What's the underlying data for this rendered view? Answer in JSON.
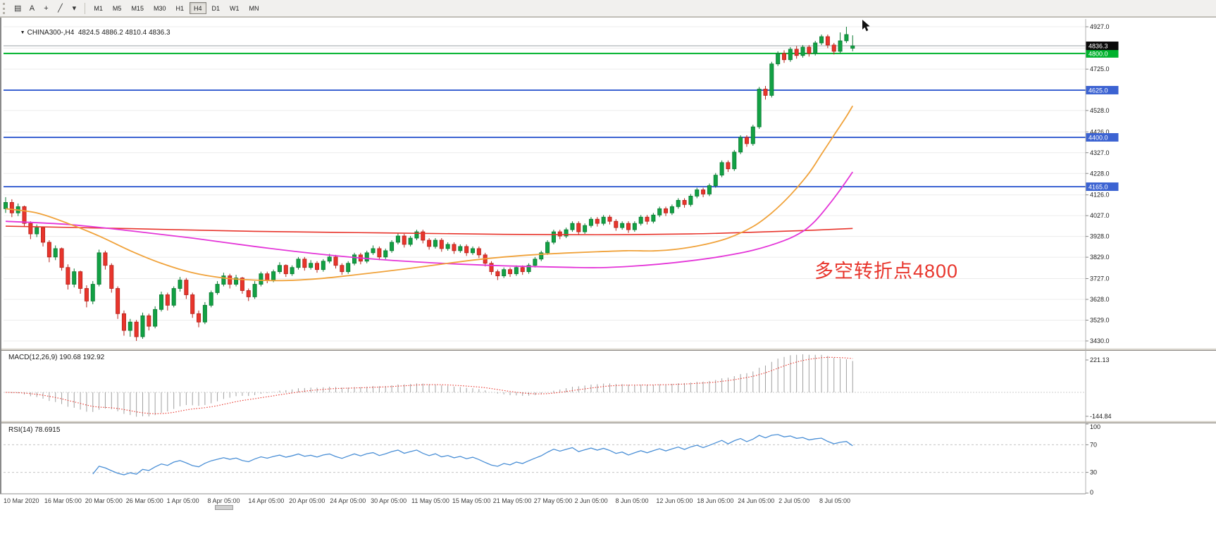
{
  "toolbar": {
    "tools": [
      {
        "name": "charts-bar-icon",
        "glyph": "▤"
      },
      {
        "name": "text-tool-button",
        "glyph": "A"
      },
      {
        "name": "crosshair-icon",
        "glyph": "+"
      },
      {
        "name": "trendline-tool-icon",
        "glyph": "╱"
      },
      {
        "name": "chevron-down-icon",
        "glyph": "▾"
      }
    ],
    "timeframes": [
      "M1",
      "M5",
      "M15",
      "M30",
      "H1",
      "H4",
      "D1",
      "W1",
      "MN"
    ],
    "active_timeframe": "H4"
  },
  "chart": {
    "title_symbol": "CHINA300-,H4",
    "title_ohlc": "4824.5 4886.2 4810.4 4836.3",
    "annotation": "多空转折点4800",
    "current_price_label": "4836.3",
    "price_ticks": [
      "4927.0",
      "4825.0",
      "4725.0",
      "4625.0",
      "4528.0",
      "4426.0",
      "4327.0",
      "4228.0",
      "4126.0",
      "4027.0",
      "3928.0",
      "3829.0",
      "3727.0",
      "3628.0",
      "3529.0",
      "3430.0"
    ],
    "hlines": [
      {
        "price": 4800.0,
        "label": "4800.0",
        "color": "#00b22d"
      },
      {
        "price": 4625.0,
        "label": "4625.0",
        "color": "#3c63d2"
      },
      {
        "price": 4400.0,
        "label": "4400.0",
        "color": "#3c63d2"
      },
      {
        "price": 4165.0,
        "label": "4165.0",
        "color": "#3c63d2"
      }
    ],
    "colors": {
      "bull": "#12a144",
      "bull_stroke": "#0a7a31",
      "bear": "#e8352c",
      "bear_stroke": "#b4211a",
      "ma_red": "#e8352c",
      "ma_magenta": "#e435d8",
      "ma_orange": "#f0a23a",
      "grid": "#ececec",
      "bid_line": "#9aa0a6",
      "axis": "#b0b0b0"
    }
  },
  "macd": {
    "header": "MACD(12,26,9) 190.68 192.92",
    "scale_top": "221.13",
    "scale_bottom": "-144.84",
    "range": [
      -144.84,
      221.13
    ],
    "histogram_color": "#a0a0a0",
    "signal_color": "#e8352c"
  },
  "rsi": {
    "header": "RSI(14) 78.6915",
    "scale": [
      {
        "label": "100",
        "value": 100
      },
      {
        "label": "70",
        "value": 70
      },
      {
        "label": "30",
        "value": 30
      },
      {
        "label": "0",
        "value": 0
      }
    ],
    "dashed_levels": [
      70,
      30
    ],
    "line_color": "#4a8fd6"
  },
  "time_axis": [
    "10 Mar 2020",
    "16 Mar 05:00",
    "20 Mar 05:00",
    "26 Mar 05:00",
    "1 Apr 05:00",
    "8 Apr 05:00",
    "14 Apr 05:00",
    "20 Apr 05:00",
    "24 Apr 05:00",
    "30 Apr 05:00",
    "11 May 05:00",
    "15 May 05:00",
    "21 May 05:00",
    "27 May 05:00",
    "2 Jun 05:00",
    "8 Jun 05:00",
    "12 Jun 05:00",
    "18 Jun 05:00",
    "24 Jun 05:00",
    "2 Jul 05:00",
    "8 Jul 05:00"
  ],
  "chart_data": {
    "type": "candlestick",
    "symbol": "CHINA300-",
    "timeframe": "H4",
    "title": "CHINA300- H4 with MACD(12,26,9) and RSI(14)",
    "price_range": [
      3430,
      4927
    ],
    "current_ohlc": {
      "open": 4824.5,
      "high": 4886.2,
      "low": 4810.4,
      "close": 4836.3
    },
    "horizontal_levels": [
      4800.0,
      4625.0,
      4400.0,
      4165.0
    ],
    "indicators": {
      "macd_current": [
        190.68,
        192.92
      ],
      "macd_minmax": [
        -144.84,
        221.13
      ],
      "rsi_current": 78.6915
    },
    "ohlc": [
      [
        4060,
        4115,
        4040,
        4090
      ],
      [
        4090,
        4105,
        4020,
        4040
      ],
      [
        4040,
        4085,
        4025,
        4070
      ],
      [
        4070,
        4075,
        3975,
        3990
      ],
      [
        3990,
        4000,
        3915,
        3940
      ],
      [
        3940,
        3985,
        3925,
        3970
      ],
      [
        3970,
        3975,
        3880,
        3900
      ],
      [
        3900,
        3910,
        3805,
        3830
      ],
      [
        3830,
        3885,
        3815,
        3870
      ],
      [
        3870,
        3875,
        3765,
        3780
      ],
      [
        3780,
        3795,
        3675,
        3700
      ],
      [
        3700,
        3775,
        3685,
        3760
      ],
      [
        3760,
        3765,
        3655,
        3680
      ],
      [
        3680,
        3695,
        3590,
        3620
      ],
      [
        3620,
        3715,
        3605,
        3700
      ],
      [
        3700,
        3865,
        3690,
        3850
      ],
      [
        3850,
        3860,
        3770,
        3790
      ],
      [
        3790,
        3800,
        3660,
        3680
      ],
      [
        3680,
        3690,
        3535,
        3560
      ],
      [
        3560,
        3575,
        3455,
        3480
      ],
      [
        3480,
        3535,
        3450,
        3520
      ],
      [
        3520,
        3530,
        3430,
        3450
      ],
      [
        3450,
        3565,
        3440,
        3550
      ],
      [
        3550,
        3560,
        3480,
        3500
      ],
      [
        3500,
        3595,
        3490,
        3580
      ],
      [
        3580,
        3665,
        3570,
        3650
      ],
      [
        3650,
        3660,
        3575,
        3600
      ],
      [
        3600,
        3690,
        3590,
        3680
      ],
      [
        3680,
        3735,
        3665,
        3720
      ],
      [
        3720,
        3730,
        3630,
        3650
      ],
      [
        3650,
        3660,
        3540,
        3560
      ],
      [
        3560,
        3575,
        3495,
        3520
      ],
      [
        3520,
        3615,
        3510,
        3600
      ],
      [
        3600,
        3670,
        3590,
        3660
      ],
      [
        3660,
        3715,
        3650,
        3700
      ],
      [
        3700,
        3755,
        3690,
        3740
      ],
      [
        3740,
        3750,
        3680,
        3700
      ],
      [
        3700,
        3745,
        3690,
        3730
      ],
      [
        3730,
        3735,
        3655,
        3670
      ],
      [
        3670,
        3680,
        3620,
        3640
      ],
      [
        3640,
        3715,
        3630,
        3700
      ],
      [
        3700,
        3760,
        3690,
        3750
      ],
      [
        3750,
        3760,
        3705,
        3720
      ],
      [
        3720,
        3770,
        3710,
        3760
      ],
      [
        3760,
        3805,
        3750,
        3790
      ],
      [
        3790,
        3795,
        3735,
        3750
      ],
      [
        3750,
        3790,
        3740,
        3780
      ],
      [
        3780,
        3830,
        3770,
        3820
      ],
      [
        3820,
        3830,
        3765,
        3780
      ],
      [
        3780,
        3815,
        3770,
        3800
      ],
      [
        3800,
        3810,
        3755,
        3770
      ],
      [
        3770,
        3820,
        3760,
        3810
      ],
      [
        3810,
        3845,
        3800,
        3830
      ],
      [
        3830,
        3840,
        3775,
        3790
      ],
      [
        3790,
        3800,
        3745,
        3760
      ],
      [
        3760,
        3810,
        3750,
        3800
      ],
      [
        3800,
        3850,
        3790,
        3840
      ],
      [
        3840,
        3850,
        3795,
        3810
      ],
      [
        3810,
        3860,
        3800,
        3850
      ],
      [
        3850,
        3885,
        3840,
        3870
      ],
      [
        3870,
        3880,
        3815,
        3830
      ],
      [
        3830,
        3870,
        3820,
        3860
      ],
      [
        3860,
        3910,
        3850,
        3900
      ],
      [
        3900,
        3945,
        3890,
        3930
      ],
      [
        3930,
        3940,
        3875,
        3890
      ],
      [
        3890,
        3930,
        3880,
        3920
      ],
      [
        3920,
        3960,
        3910,
        3950
      ],
      [
        3950,
        3960,
        3895,
        3910
      ],
      [
        3910,
        3920,
        3865,
        3880
      ],
      [
        3880,
        3920,
        3870,
        3910
      ],
      [
        3910,
        3920,
        3855,
        3870
      ],
      [
        3870,
        3900,
        3860,
        3890
      ],
      [
        3890,
        3900,
        3845,
        3860
      ],
      [
        3860,
        3890,
        3850,
        3880
      ],
      [
        3880,
        3890,
        3835,
        3850
      ],
      [
        3850,
        3880,
        3840,
        3870
      ],
      [
        3870,
        3880,
        3825,
        3840
      ],
      [
        3840,
        3850,
        3785,
        3800
      ],
      [
        3800,
        3810,
        3745,
        3760
      ],
      [
        3760,
        3770,
        3720,
        3740
      ],
      [
        3740,
        3780,
        3730,
        3770
      ],
      [
        3770,
        3780,
        3735,
        3750
      ],
      [
        3750,
        3790,
        3740,
        3780
      ],
      [
        3780,
        3790,
        3745,
        3760
      ],
      [
        3760,
        3800,
        3750,
        3790
      ],
      [
        3790,
        3830,
        3780,
        3820
      ],
      [
        3820,
        3860,
        3810,
        3850
      ],
      [
        3850,
        3910,
        3840,
        3900
      ],
      [
        3900,
        3960,
        3890,
        3950
      ],
      [
        3950,
        3960,
        3915,
        3930
      ],
      [
        3930,
        3970,
        3920,
        3960
      ],
      [
        3960,
        4000,
        3950,
        3990
      ],
      [
        3990,
        4000,
        3935,
        3950
      ],
      [
        3950,
        3990,
        3940,
        3980
      ],
      [
        3980,
        4020,
        3970,
        4010
      ],
      [
        4010,
        4020,
        3975,
        3990
      ],
      [
        3990,
        4030,
        3980,
        4020
      ],
      [
        4020,
        4030,
        3985,
        4000
      ],
      [
        4000,
        4010,
        3955,
        3970
      ],
      [
        3970,
        4000,
        3960,
        3990
      ],
      [
        3990,
        4000,
        3945,
        3960
      ],
      [
        3960,
        4000,
        3950,
        3990
      ],
      [
        3990,
        4030,
        3980,
        4020
      ],
      [
        4020,
        4030,
        3985,
        4000
      ],
      [
        4000,
        4040,
        3990,
        4030
      ],
      [
        4030,
        4070,
        4020,
        4060
      ],
      [
        4060,
        4070,
        4025,
        4040
      ],
      [
        4040,
        4080,
        4030,
        4070
      ],
      [
        4070,
        4110,
        4060,
        4100
      ],
      [
        4100,
        4110,
        4065,
        4080
      ],
      [
        4080,
        4130,
        4070,
        4120
      ],
      [
        4120,
        4160,
        4110,
        4150
      ],
      [
        4150,
        4160,
        4115,
        4130
      ],
      [
        4130,
        4180,
        4120,
        4170
      ],
      [
        4170,
        4230,
        4160,
        4220
      ],
      [
        4220,
        4290,
        4210,
        4280
      ],
      [
        4280,
        4290,
        4235,
        4250
      ],
      [
        4250,
        4340,
        4240,
        4330
      ],
      [
        4330,
        4410,
        4320,
        4400
      ],
      [
        4400,
        4410,
        4355,
        4370
      ],
      [
        4370,
        4460,
        4360,
        4450
      ],
      [
        4450,
        4640,
        4440,
        4630
      ],
      [
        4630,
        4645,
        4580,
        4600
      ],
      [
        4600,
        4760,
        4590,
        4750
      ],
      [
        4750,
        4810,
        4740,
        4800
      ],
      [
        4800,
        4815,
        4755,
        4770
      ],
      [
        4770,
        4830,
        4760,
        4820
      ],
      [
        4820,
        4835,
        4775,
        4790
      ],
      [
        4790,
        4840,
        4780,
        4830
      ],
      [
        4830,
        4840,
        4785,
        4800
      ],
      [
        4800,
        4860,
        4790,
        4850
      ],
      [
        4850,
        4890,
        4840,
        4880
      ],
      [
        4880,
        4890,
        4825,
        4840
      ],
      [
        4840,
        4850,
        4795,
        4810
      ],
      [
        4810,
        4900,
        4800,
        4860
      ],
      [
        4860,
        4927,
        4850,
        4890
      ],
      [
        4824.5,
        4886.2,
        4810.4,
        4836.3
      ]
    ],
    "ma": {
      "red": [
        [
          0,
          3977
        ],
        [
          20,
          3965
        ],
        [
          40,
          3952
        ],
        [
          60,
          3945
        ],
        [
          80,
          3938
        ],
        [
          95,
          3936
        ],
        [
          110,
          3940
        ],
        [
          120,
          3948
        ],
        [
          130,
          3958
        ],
        [
          136,
          3966
        ]
      ],
      "magenta": [
        [
          0,
          4000
        ],
        [
          10,
          3985
        ],
        [
          20,
          3955
        ],
        [
          30,
          3920
        ],
        [
          40,
          3880
        ],
        [
          50,
          3845
        ],
        [
          60,
          3818
        ],
        [
          70,
          3800
        ],
        [
          80,
          3788
        ],
        [
          90,
          3781
        ],
        [
          95,
          3779
        ],
        [
          100,
          3785
        ],
        [
          105,
          3796
        ],
        [
          110,
          3812
        ],
        [
          115,
          3833
        ],
        [
          120,
          3862
        ],
        [
          125,
          3908
        ],
        [
          128,
          3952
        ],
        [
          130,
          4002
        ],
        [
          132,
          4072
        ],
        [
          134,
          4150
        ],
        [
          136,
          4235
        ]
      ],
      "orange": [
        [
          0,
          4060
        ],
        [
          5,
          4040
        ],
        [
          10,
          3990
        ],
        [
          15,
          3930
        ],
        [
          20,
          3860
        ],
        [
          25,
          3800
        ],
        [
          30,
          3755
        ],
        [
          35,
          3730
        ],
        [
          40,
          3720
        ],
        [
          45,
          3718
        ],
        [
          50,
          3726
        ],
        [
          55,
          3741
        ],
        [
          60,
          3758
        ],
        [
          65,
          3776
        ],
        [
          70,
          3796
        ],
        [
          75,
          3815
        ],
        [
          80,
          3830
        ],
        [
          85,
          3841
        ],
        [
          90,
          3849
        ],
        [
          95,
          3855
        ],
        [
          100,
          3860
        ],
        [
          104,
          3859
        ],
        [
          108,
          3868
        ],
        [
          112,
          3888
        ],
        [
          116,
          3920
        ],
        [
          120,
          3975
        ],
        [
          123,
          4040
        ],
        [
          126,
          4125
        ],
        [
          129,
          4230
        ],
        [
          131,
          4320
        ],
        [
          133,
          4410
        ],
        [
          135,
          4500
        ],
        [
          136,
          4550
        ]
      ]
    }
  }
}
